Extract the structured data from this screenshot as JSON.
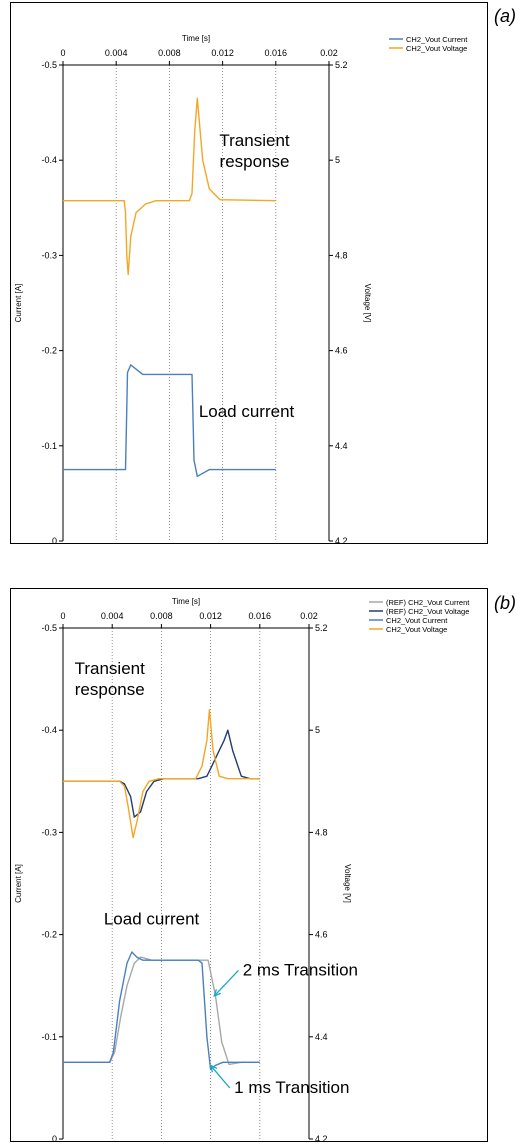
{
  "chart_data": [
    {
      "panel": "(a)",
      "type": "line",
      "xlabel": "Time [s]",
      "ylabel": "Current [A]",
      "y2label": "Voltage [V]",
      "xlim": [
        0,
        0.02
      ],
      "ylim": [
        -0.5,
        0
      ],
      "y2lim": [
        4.2,
        5.2
      ],
      "x_ticks": [
        "0",
        "0.004",
        "0.008",
        "0.012",
        "0.016",
        "0.02"
      ],
      "y_ticks": [
        "-0.5",
        "-0.4",
        "-0.3",
        "-0.2",
        "-0.1",
        "0"
      ],
      "y2_ticks": [
        "5.2",
        "5",
        "4.8",
        "4.6",
        "4.4",
        "4.2"
      ],
      "grid": "vertical dotted",
      "legend_position": "top-right outside",
      "series": [
        {
          "name": "CH2_Vout Current",
          "axis": "left",
          "color": "#4a7fc1",
          "x": [
            0,
            0.0044,
            0.0047,
            0.00478,
            0.00485,
            0.0051,
            0.006,
            0.0096,
            0.0097,
            0.00985,
            0.0101,
            0.011,
            0.016
          ],
          "y": [
            -0.075,
            -0.075,
            -0.075,
            -0.13,
            -0.177,
            -0.185,
            -0.175,
            -0.175,
            -0.175,
            -0.085,
            -0.068,
            -0.075,
            -0.075
          ]
        },
        {
          "name": "CH2_Vout Voltage",
          "axis": "right",
          "color": "#f5a623",
          "x": [
            0,
            0.0046,
            0.0047,
            0.0048,
            0.0049,
            0.0051,
            0.0055,
            0.0062,
            0.007,
            0.0095,
            0.0097,
            0.0099,
            0.0101,
            0.0105,
            0.011,
            0.0118,
            0.016
          ],
          "y": [
            4.915,
            4.915,
            4.89,
            4.8,
            4.76,
            4.84,
            4.89,
            4.908,
            4.915,
            4.915,
            4.93,
            5.06,
            5.13,
            5.0,
            4.94,
            4.917,
            4.915
          ]
        }
      ],
      "annotations": [
        {
          "text": "Transient response",
          "x": 0.0144,
          "y": -0.415
        },
        {
          "text": "Load current",
          "x": 0.0138,
          "y": -0.13
        }
      ]
    },
    {
      "panel": "(b)",
      "type": "line",
      "xlabel": "Time [s]",
      "ylabel": "Current [A]",
      "y2label": "Voltage [V]",
      "xlim": [
        0,
        0.02
      ],
      "ylim": [
        -0.5,
        0
      ],
      "y2lim": [
        4.2,
        5.2
      ],
      "x_ticks": [
        "0",
        "0.004",
        "0.008",
        "0.012",
        "0.016",
        "0.02"
      ],
      "y_ticks": [
        "-0.5",
        "-0.4",
        "-0.3",
        "-0.2",
        "-0.1",
        "0"
      ],
      "y2_ticks": [
        "5.2",
        "5",
        "4.8",
        "4.6",
        "4.4",
        "4.2"
      ],
      "grid": "vertical dotted",
      "legend_position": "top-right outside",
      "series": [
        {
          "name": "(REF) CH2_Vout Current",
          "axis": "left",
          "color": "#a8a8a8",
          "x": [
            0,
            0.0038,
            0.0042,
            0.0047,
            0.0052,
            0.0058,
            0.0063,
            0.0066,
            0.0072,
            0.0106,
            0.0112,
            0.0118,
            0.0124,
            0.0129,
            0.0135,
            0.0145,
            0.016
          ],
          "y": [
            -0.075,
            -0.075,
            -0.085,
            -0.12,
            -0.15,
            -0.172,
            -0.178,
            -0.177,
            -0.175,
            -0.175,
            -0.175,
            -0.175,
            -0.14,
            -0.095,
            -0.073,
            -0.075,
            -0.075
          ]
        },
        {
          "name": "(REF) CH2_Vout Voltage",
          "axis": "right",
          "color": "#223d6e",
          "x": [
            0,
            0.0046,
            0.005,
            0.0055,
            0.0058,
            0.0063,
            0.0068,
            0.0074,
            0.0082,
            0.011,
            0.0117,
            0.0122,
            0.0127,
            0.0131,
            0.0134,
            0.0138,
            0.0145,
            0.0152,
            0.016
          ],
          "y": [
            4.9,
            4.9,
            4.895,
            4.87,
            4.83,
            4.84,
            4.88,
            4.9,
            4.905,
            4.905,
            4.91,
            4.935,
            4.96,
            4.98,
            5.0,
            4.96,
            4.91,
            4.905,
            4.905
          ]
        },
        {
          "name": "CH2_Vout Current",
          "axis": "left",
          "color": "#4a7fc1",
          "x": [
            0,
            0.0038,
            0.0041,
            0.0046,
            0.0052,
            0.0056,
            0.006,
            0.0065,
            0.011,
            0.0113,
            0.0117,
            0.012,
            0.0124,
            0.013,
            0.016
          ],
          "y": [
            -0.075,
            -0.075,
            -0.085,
            -0.135,
            -0.172,
            -0.183,
            -0.178,
            -0.175,
            -0.175,
            -0.172,
            -0.1,
            -0.068,
            -0.072,
            -0.075,
            -0.075
          ]
        },
        {
          "name": "CH2_Vout Voltage",
          "axis": "right",
          "color": "#f5a623",
          "x": [
            0,
            0.0046,
            0.005,
            0.0053,
            0.0057,
            0.006,
            0.0065,
            0.007,
            0.0078,
            0.0108,
            0.0113,
            0.0117,
            0.0119,
            0.0122,
            0.0127,
            0.0134,
            0.016
          ],
          "y": [
            4.9,
            4.9,
            4.89,
            4.85,
            4.79,
            4.82,
            4.88,
            4.9,
            4.905,
            4.905,
            4.93,
            4.98,
            5.04,
            4.96,
            4.91,
            4.905,
            4.905
          ]
        }
      ],
      "annotations": [
        {
          "text": "Transient response",
          "x": 0.0038,
          "y": -0.455
        },
        {
          "text": "Load current",
          "x": 0.0072,
          "y": -0.21
        },
        {
          "text": "2 ms  Transition",
          "x": 0.0193,
          "y": -0.16,
          "arrow_to": [
            0.0123,
            -0.14
          ]
        },
        {
          "text": "1 ms  Transition",
          "x": 0.0186,
          "y": -0.045,
          "arrow_to": [
            0.012,
            -0.072
          ]
        }
      ]
    }
  ]
}
